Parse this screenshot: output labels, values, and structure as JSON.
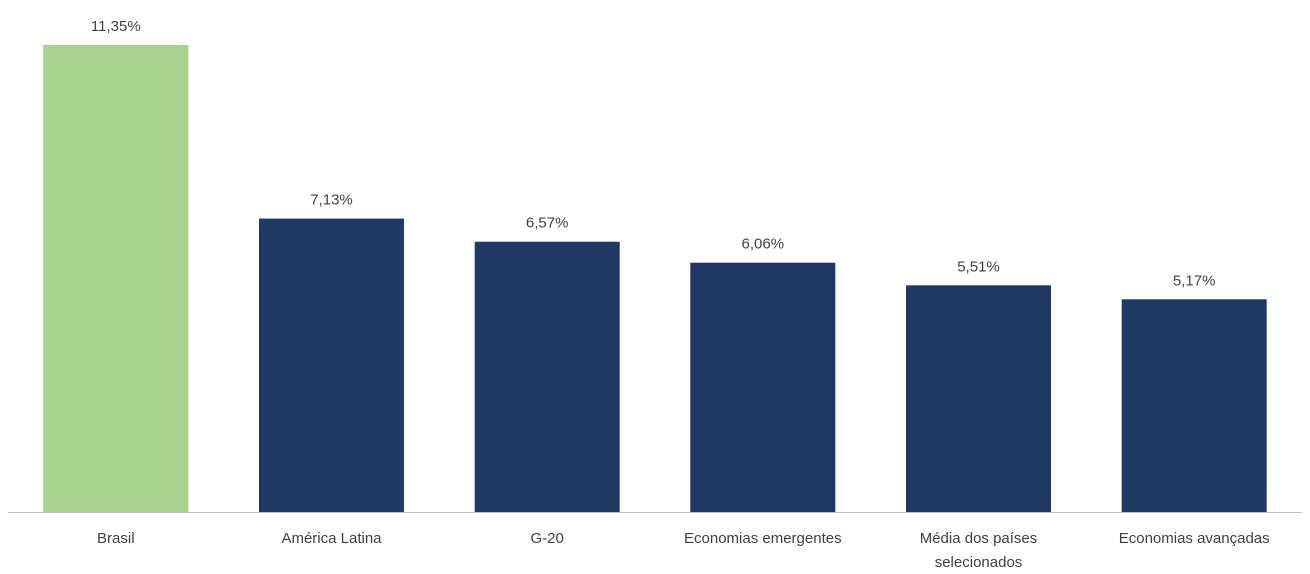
{
  "chart_data": {
    "type": "bar",
    "categories": [
      "Brasil",
      "América Latina",
      "G-20",
      "Economias emergentes",
      "Média dos países selecionados",
      "Economias avançadas"
    ],
    "category_label_lines": [
      [
        "Brasil"
      ],
      [
        "América Latina"
      ],
      [
        "G-20"
      ],
      [
        "Economias emergentes"
      ],
      [
        "Média dos países",
        "selecionados"
      ],
      [
        "Economias avançadas"
      ]
    ],
    "values": [
      11.35,
      7.13,
      6.57,
      6.06,
      5.51,
      5.17
    ],
    "value_labels": [
      "11,35%",
      "7,13%",
      "6,57%",
      "6,06%",
      "5,51%",
      "5,17%"
    ],
    "bar_colors": [
      "#a9d18e",
      "#203864",
      "#203864",
      "#203864",
      "#203864",
      "#203864"
    ],
    "axis_color": "#bfbfbf",
    "ylim": [
      0,
      11.35
    ],
    "grid": false,
    "legend": "none"
  }
}
